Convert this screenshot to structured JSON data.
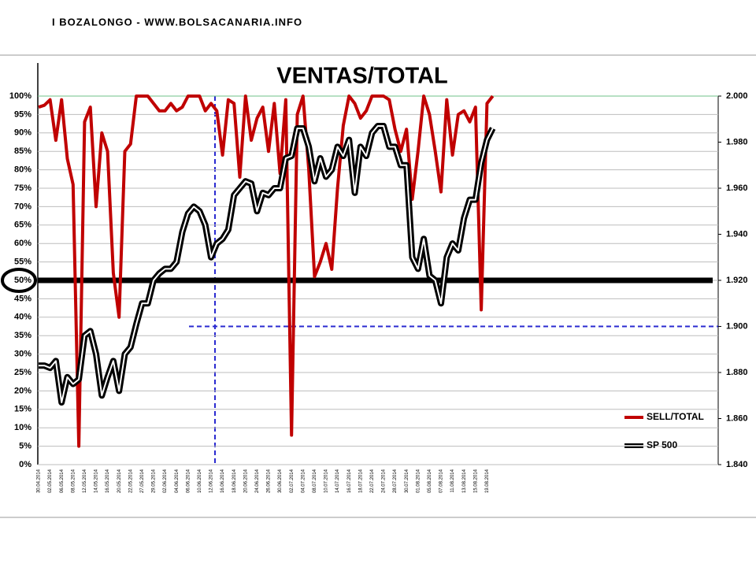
{
  "header": "I BOZALONGO - WWW.BOLSACANARIA.INFO",
  "chart_data": {
    "type": "line",
    "title": "VENTAS/TOTAL",
    "categories": [
      "30.04.2014",
      null,
      "02.05.2014",
      null,
      "06.05.2014",
      null,
      "08.05.2014",
      null,
      "12.05.2014",
      null,
      "14.05.2014",
      null,
      "16.05.2014",
      null,
      "20.05.2014",
      null,
      "22.05.2014",
      null,
      "27.05.2014",
      null,
      "29.05.2014",
      null,
      "02.06.2014",
      null,
      "04.06.2014",
      null,
      "06.06.2014",
      null,
      "10.06.2014",
      null,
      "12.06.2014",
      null,
      "16.06.2014",
      null,
      "18.06.2014",
      null,
      "20.06.2014",
      null,
      "24.06.2014",
      null,
      "26.06.2014",
      null,
      "30.06.2014",
      null,
      "02.07.2014",
      null,
      "04.07.2014",
      null,
      "08.07.2014",
      null,
      "10.07.2014",
      null,
      "14.07.2014",
      null,
      "16.07.2014",
      null,
      "18.07.2014",
      null,
      "22.07.2014",
      null,
      "24.07.2014",
      null,
      "28.07.2014",
      null,
      "30.07.2014",
      null,
      "01.08.2014",
      null,
      "05.08.2014",
      null,
      "07.08.2014",
      null,
      "11.08.2014",
      null,
      "13.08.2014",
      null,
      "15.08.2014",
      null,
      "19.08.2014",
      null
    ],
    "series": [
      {
        "name": "SELL/TOTAL",
        "color": "#c00000",
        "axis": "y",
        "values": [
          97,
          97.5,
          99,
          88,
          99,
          83,
          76,
          5,
          93,
          97,
          70,
          90,
          85,
          52,
          40,
          85,
          87,
          100,
          100,
          100,
          98,
          96,
          96,
          98,
          96,
          97,
          100,
          100,
          100,
          96,
          98,
          96,
          84,
          99,
          98,
          78,
          100,
          88,
          94,
          97,
          85,
          98,
          79,
          99,
          8,
          95,
          100,
          80,
          51,
          55,
          60,
          53,
          75,
          92,
          100,
          98,
          94,
          96,
          100,
          100,
          100,
          99,
          91,
          85,
          91,
          72,
          85,
          100,
          95,
          85,
          74,
          99,
          84,
          95,
          96,
          93,
          97,
          42,
          98,
          100
        ]
      },
      {
        "name": "SP 500",
        "color": "#000000",
        "axis": "y2",
        "values": [
          1883,
          1883,
          1882,
          1885,
          1867,
          1878,
          1875,
          1877,
          1896,
          1898,
          1888,
          1870,
          1878,
          1885,
          1872,
          1888,
          1891,
          1901,
          1910,
          1910,
          1920,
          1923,
          1925,
          1925,
          1928,
          1941,
          1949,
          1952,
          1950,
          1944,
          1930,
          1936,
          1938,
          1942,
          1957,
          1960,
          1963,
          1962,
          1950,
          1958,
          1957,
          1960,
          1960,
          1973,
          1974,
          1986,
          1986,
          1978,
          1963,
          1973,
          1965,
          1968,
          1978,
          1974,
          1981,
          1958,
          1978,
          1974,
          1984,
          1987,
          1987,
          1978,
          1978,
          1970,
          1970,
          1930,
          1925,
          1938,
          1922,
          1920,
          1910,
          1930,
          1936,
          1933,
          1947,
          1955,
          1955,
          1971,
          1981,
          1986
        ]
      }
    ],
    "ylim": [
      0,
      100
    ],
    "yticks": [
      {
        "value": 0,
        "label": "0%"
      },
      {
        "value": 5,
        "label": "5%"
      },
      {
        "value": 10,
        "label": "10%"
      },
      {
        "value": 15,
        "label": "15%"
      },
      {
        "value": 20,
        "label": "20%"
      },
      {
        "value": 25,
        "label": "25%"
      },
      {
        "value": 30,
        "label": "30%"
      },
      {
        "value": 35,
        "label": "35%"
      },
      {
        "value": 40,
        "label": "40%"
      },
      {
        "value": 45,
        "label": "45%"
      },
      {
        "value": 50,
        "label": "50%"
      },
      {
        "value": 55,
        "label": "55%"
      },
      {
        "value": 60,
        "label": "60%"
      },
      {
        "value": 65,
        "label": "65%"
      },
      {
        "value": 70,
        "label": "70%"
      },
      {
        "value": 75,
        "label": "75%"
      },
      {
        "value": 80,
        "label": "80%"
      },
      {
        "value": 85,
        "label": "85%"
      },
      {
        "value": 90,
        "label": "90%"
      },
      {
        "value": 95,
        "label": "95%"
      },
      {
        "value": 100,
        "label": "100%"
      }
    ],
    "y2lim": [
      1840,
      2000
    ],
    "y2ticks": [
      {
        "value": 1840,
        "label": "1.840"
      },
      {
        "value": 1860,
        "label": "1.860"
      },
      {
        "value": 1880,
        "label": "1.880"
      },
      {
        "value": 1900,
        "label": "1.900"
      },
      {
        "value": 1920,
        "label": "1.920"
      },
      {
        "value": 1940,
        "label": "1.940"
      },
      {
        "value": 1960,
        "label": "1.960"
      },
      {
        "value": 1980,
        "label": "1.980"
      },
      {
        "value": 2000,
        "label": "2.000"
      }
    ],
    "grid": true,
    "legend": "lower right",
    "reference_lines": [
      {
        "axis": "y",
        "value": 50,
        "color": "#000000"
      },
      {
        "axis": "y2",
        "value": 1900,
        "color": "#2a2ad0"
      }
    ]
  }
}
